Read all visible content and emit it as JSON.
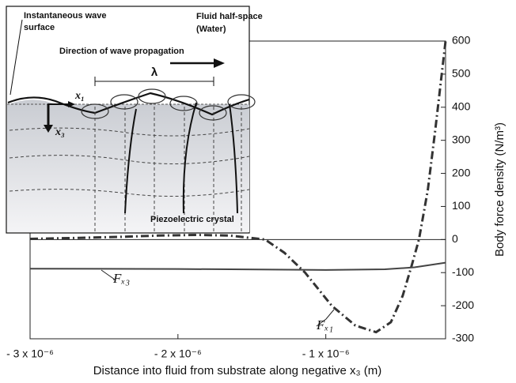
{
  "chart_data": {
    "type": "line",
    "x_label": "Distance into fluid from substrate along negative x₃ (m)",
    "y_label": "Body force density (N/m³)",
    "xlim": [
      -3e-06,
      -1.9e-07
    ],
    "xticks": [
      {
        "value": -3e-06,
        "label": "- 3 x 10⁻⁶"
      },
      {
        "value": -2e-06,
        "label": "- 2 x 10⁻⁶"
      },
      {
        "value": -1e-06,
        "label": "- 1 x 10⁻⁶"
      }
    ],
    "ylim": [
      -300,
      600
    ],
    "yticks": [
      -300,
      -200,
      -100,
      0,
      100,
      200,
      300,
      400,
      500,
      600
    ],
    "zero_line": true,
    "series": [
      {
        "name": "Fₓ₁",
        "color": "#333333",
        "style": "dashdot",
        "x": [
          -3e-06,
          -2.67e-06,
          -2.4e-06,
          -2.13e-06,
          -1.87e-06,
          -1.65e-06,
          -1.41e-06,
          -1.28e-06,
          -1.14e-06,
          -9.6e-07,
          -8e-07,
          -6.6e-07,
          -5.6e-07,
          -4.8e-07,
          -4.2e-07,
          -3.7e-07,
          -3.1e-07,
          -2.6e-07,
          -1.9e-07
        ],
        "values": [
          2,
          5,
          8,
          12,
          14,
          12,
          0,
          -40,
          -100,
          -200,
          -260,
          -280,
          -250,
          -170,
          -80,
          0,
          150,
          330,
          600
        ]
      },
      {
        "name": "Fₓ₃",
        "color": "#444444",
        "style": "solid",
        "x": [
          -3e-06,
          -2e-06,
          -1e-06,
          -6e-07,
          -4e-07,
          -1.9e-07
        ],
        "values": [
          -88,
          -89,
          -92,
          -90,
          -84,
          -70
        ]
      }
    ],
    "annotations": [
      "Instantaneous wave",
      "surface",
      "Fluid half-space",
      "(Water)",
      "Direction of wave propagation",
      "λ",
      "x₁",
      "x₃",
      "Piezoelectric crystal"
    ]
  }
}
